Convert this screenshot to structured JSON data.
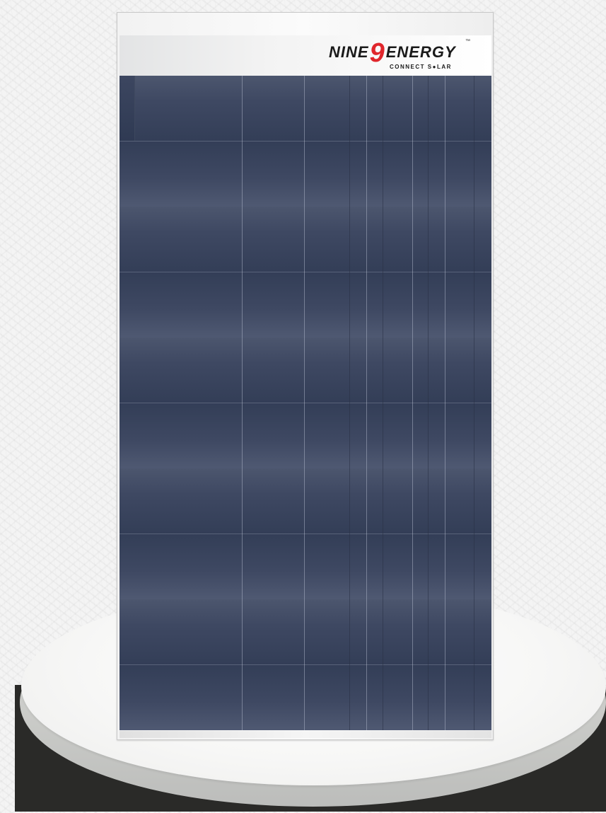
{
  "brand": {
    "name_prefix": "NINE",
    "name_digit": "9",
    "name_suffix": "ENERGY",
    "trademark": "™",
    "tagline": "CONNECT S●LAR",
    "accent_color": "#e0262c"
  },
  "panel": {
    "cell_color": "#3a4560",
    "frame_color": "#f2f2f2"
  }
}
